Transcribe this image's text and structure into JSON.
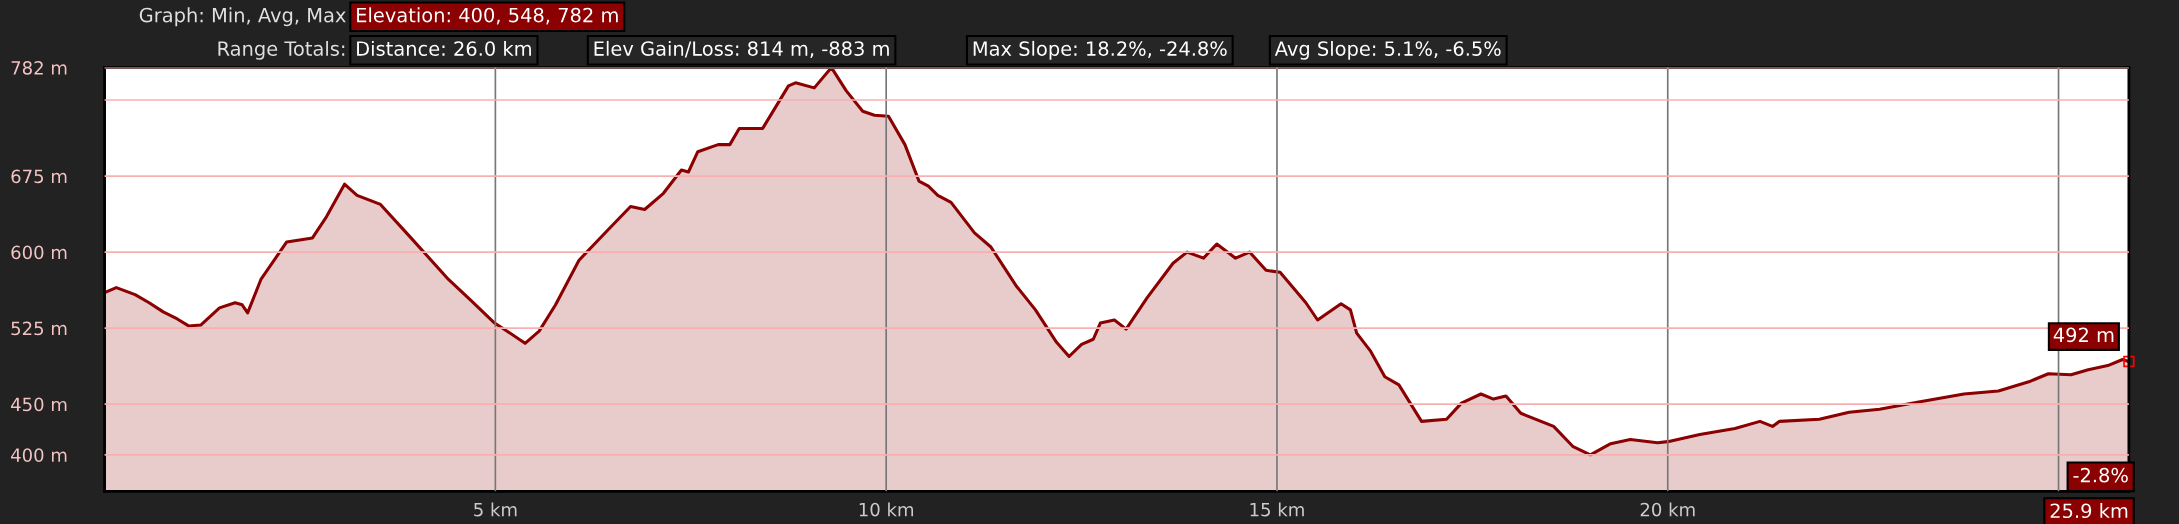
{
  "chart_data": {
    "type": "area",
    "x": [
      0,
      0.15,
      0.39,
      0.57,
      0.75,
      0.93,
      1.08,
      1.23,
      1.47,
      1.67,
      1.76,
      1.83,
      2.0,
      2.33,
      2.66,
      2.84,
      3.07,
      3.23,
      3.53,
      3.92,
      4.4,
      4.69,
      4.99,
      5.17,
      5.38,
      5.56,
      5.77,
      6.07,
      6.43,
      6.73,
      6.91,
      7.15,
      7.38,
      7.47,
      7.59,
      7.85,
      8.0,
      8.12,
      8.42,
      8.75,
      8.84,
      9.08,
      9.3,
      9.49,
      9.7,
      9.85,
      10.03,
      10.24,
      10.42,
      10.54,
      10.66,
      10.83,
      11.13,
      11.34,
      11.67,
      11.91,
      12.18,
      12.34,
      12.5,
      12.65,
      12.74,
      12.92,
      13.07,
      13.34,
      13.67,
      13.85,
      14.06,
      14.23,
      14.47,
      14.65,
      14.86,
      15.04,
      15.37,
      15.52,
      15.82,
      15.94,
      16.02,
      16.2,
      16.38,
      16.56,
      16.85,
      17.17,
      17.36,
      17.61,
      17.77,
      17.93,
      18.12,
      18.54,
      18.79,
      19.01,
      19.27,
      19.52,
      19.87,
      20.0,
      20.41,
      20.86,
      21.18,
      21.34,
      21.43,
      21.94,
      22.32,
      22.71,
      23.21,
      23.79,
      24.23,
      24.62,
      24.87,
      25.16,
      25.38,
      25.63,
      25.82,
      25.9
    ],
    "series": [
      {
        "color": "#8b0000",
        "values": [
          560,
          565,
          558,
          550,
          541,
          534,
          527,
          528,
          545,
          550,
          548,
          540,
          573,
          610,
          614,
          635,
          667,
          656,
          647,
          614,
          573,
          552,
          530,
          521,
          510,
          522,
          548,
          592,
          621,
          645,
          642,
          658,
          681,
          679,
          699,
          706,
          706,
          722,
          722,
          764,
          767,
          762,
          782,
          759,
          739,
          735,
          734,
          706,
          670,
          665,
          656,
          649,
          619,
          605,
          566,
          543,
          511,
          497,
          509,
          514,
          530,
          533,
          524,
          555,
          589,
          600,
          594,
          608,
          594,
          600,
          582,
          580,
          550,
          533,
          549,
          543,
          520,
          502,
          477,
          469,
          433,
          435,
          451,
          460,
          455,
          458,
          441,
          428,
          408,
          400,
          411,
          415,
          412,
          413,
          420,
          426,
          433,
          428,
          433,
          435,
          442,
          445,
          452,
          460,
          463,
          472,
          480,
          479,
          484,
          488,
          494,
          492
        ]
      }
    ],
    "xlim": [
      0,
      25.9
    ],
    "ylim": [
      364,
      782
    ],
    "xticks": [
      {
        "value": 5,
        "label": "5 km"
      },
      {
        "value": 10,
        "label": "10 km"
      },
      {
        "value": 15,
        "label": "15 km"
      },
      {
        "value": 20,
        "label": "20 km"
      },
      {
        "value": 25,
        "label": null
      }
    ],
    "yticks": [
      {
        "value": 400,
        "label": "400 m"
      },
      {
        "value": 450,
        "label": "450 m"
      },
      {
        "value": 525,
        "label": "525 m"
      },
      {
        "value": 600,
        "label": "600 m"
      },
      {
        "value": 675,
        "label": "675 m"
      },
      {
        "value": 750,
        "label": null
      },
      {
        "value": 782,
        "label": "782 m"
      }
    ],
    "grid": true,
    "annotations": [
      "Graph: Min, Avg, Max",
      "Elevation: 400, 548, 782 m",
      "Range Totals:",
      "Distance: 26.0 km",
      "Elev Gain/Loss: 814 m, -883 m",
      "Max Slope: 18.2%, -24.8%",
      "Avg Slope: 5.1%, -6.5%",
      "-2.8%",
      "25.9 km",
      {
        "text": "492 m",
        "x": 25.9,
        "y": 492
      }
    ]
  }
}
